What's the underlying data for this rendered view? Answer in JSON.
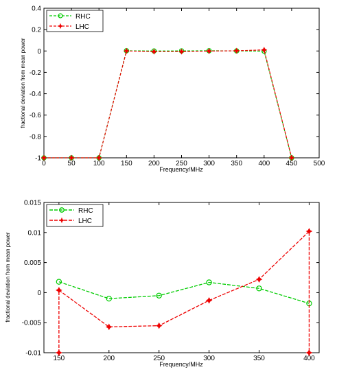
{
  "chart_data": [
    {
      "type": "line",
      "xlabel": "Frequency/MHz",
      "ylabel": "fractional deviation from mean power",
      "xlim": [
        0,
        500
      ],
      "ylim": [
        -1,
        0.4
      ],
      "xticks": [
        "0",
        "50",
        "100",
        "150",
        "200",
        "250",
        "300",
        "350",
        "400",
        "450",
        "500"
      ],
      "yticks": [
        "0.4",
        "0.2",
        "0",
        "-0.2",
        "-0.4",
        "-0.6",
        "-0.8",
        "-1"
      ],
      "grid": false,
      "legend_position": "top-left",
      "series": [
        {
          "name": "RHC",
          "color": "#00cc00",
          "marker": "circle",
          "x": [
            0,
            50,
            100,
            150,
            200,
            250,
            300,
            350,
            400,
            450
          ],
          "y": [
            -1,
            -1,
            -1,
            0.002,
            0.0,
            0.001,
            0.002,
            0.001,
            -0.002,
            -1
          ]
        },
        {
          "name": "LHC",
          "color": "#ee0000",
          "marker": "star",
          "x": [
            0,
            50,
            100,
            150,
            200,
            250,
            300,
            350,
            400,
            450
          ],
          "y": [
            -1,
            -1,
            -1,
            0.0005,
            -0.006,
            -0.0055,
            -0.001,
            0.002,
            0.01,
            -1
          ]
        }
      ]
    },
    {
      "type": "line",
      "xlabel": "Frequency/MHz",
      "ylabel": "fractional deviation from mean power",
      "xlim": [
        135,
        410
      ],
      "ylim": [
        -0.01,
        0.015
      ],
      "xticks": [
        "150",
        "200",
        "250",
        "300",
        "350",
        "400"
      ],
      "yticks": [
        "0.015",
        "0.01",
        "0.005",
        "0",
        "-0.005",
        "-0.01"
      ],
      "grid": false,
      "legend_position": "top-left",
      "series": [
        {
          "name": "RHC",
          "color": "#00cc00",
          "marker": "circle",
          "x": [
            150,
            200,
            250,
            300,
            350,
            400
          ],
          "y": [
            0.0018,
            -0.001,
            -0.0005,
            0.0017,
            0.0007,
            -0.0018
          ]
        },
        {
          "name": "LHC",
          "color": "#ee0000",
          "marker": "star",
          "x": [
            150,
            150,
            200,
            250,
            300,
            350,
            400,
            400
          ],
          "y": [
            -0.01,
            0.0004,
            -0.0057,
            -0.0055,
            -0.0013,
            0.0022,
            0.0102,
            -0.01
          ]
        }
      ]
    }
  ]
}
